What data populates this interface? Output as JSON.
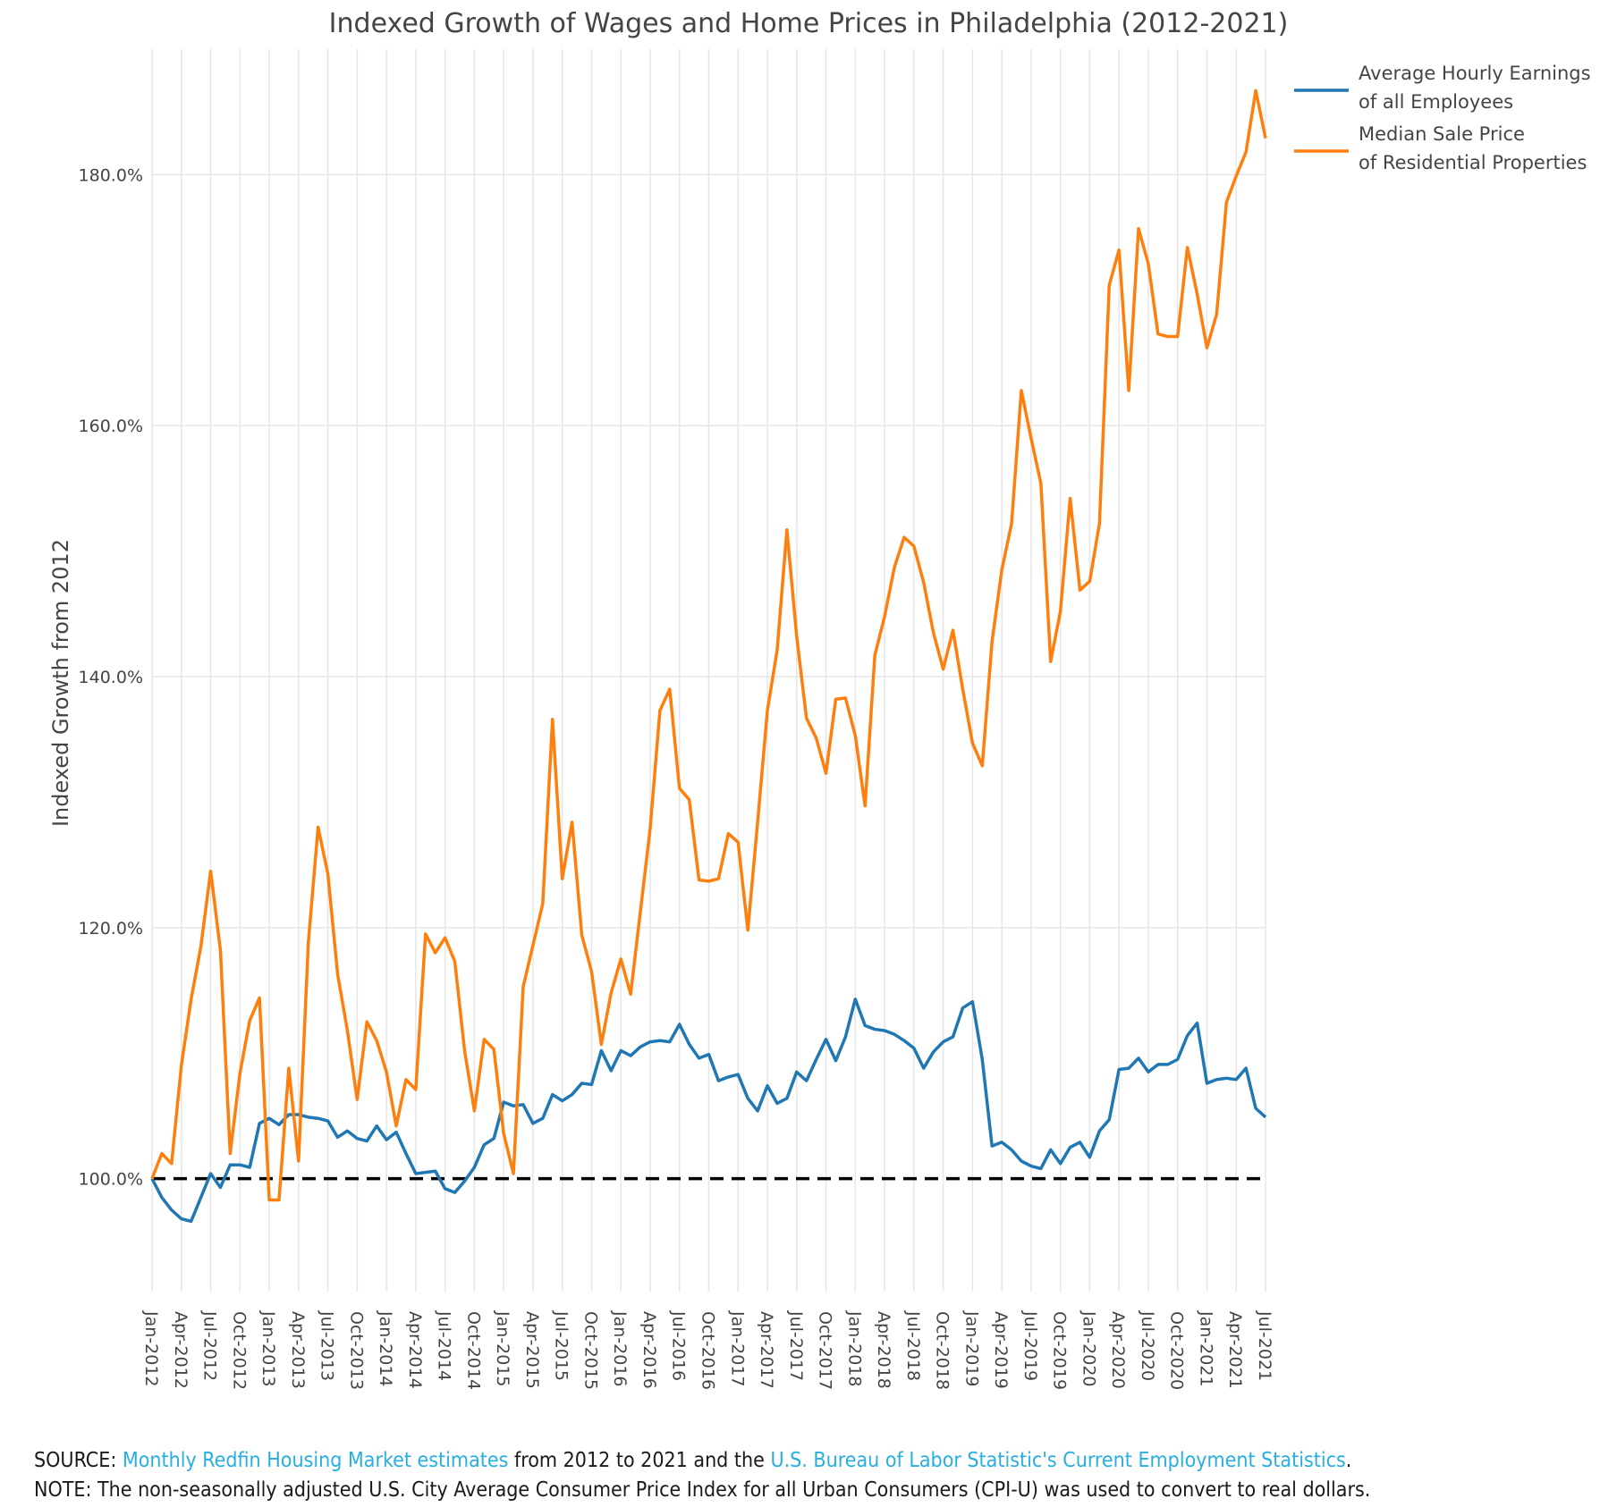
{
  "chart_data": {
    "type": "line",
    "title": "Indexed Growth of Wages and Home Prices in Philadelphia (2012-2021)",
    "ylabel": "Indexed Growth from 2012",
    "xlabel": "",
    "ylim": [
      91,
      190
    ],
    "yticks": [
      100,
      120,
      140,
      160,
      180
    ],
    "ytick_labels": [
      "100.0%",
      "120.0%",
      "140.0%",
      "160.0%",
      "180.0%"
    ],
    "x_start": "Jan-2012",
    "x_end": "Jul-2021",
    "xtick_labels": [
      "Jan-2012",
      "Apr-2012",
      "Jul-2012",
      "Oct-2012",
      "Jan-2013",
      "Apr-2013",
      "Jul-2013",
      "Oct-2013",
      "Jan-2014",
      "Apr-2014",
      "Jul-2014",
      "Oct-2014",
      "Jan-2015",
      "Apr-2015",
      "Jul-2015",
      "Oct-2015",
      "Jan-2016",
      "Apr-2016",
      "Jul-2016",
      "Oct-2016",
      "Jan-2017",
      "Apr-2017",
      "Jul-2017",
      "Oct-2017",
      "Jan-2018",
      "Apr-2018",
      "Jul-2018",
      "Oct-2018",
      "Jan-2019",
      "Apr-2019",
      "Jul-2019",
      "Oct-2019",
      "Jan-2020",
      "Apr-2020",
      "Jul-2020",
      "Oct-2020",
      "Jan-2021",
      "Apr-2021",
      "Jul-2021"
    ],
    "grid": true,
    "legend_position": "top-right",
    "reference_line": {
      "y": 100,
      "style": "dashed",
      "color": "#000000"
    },
    "series": [
      {
        "name": "Average Hourly Earnings of all Employees",
        "legend_lines": [
          "Average Hourly Earnings",
          "of all Employees"
        ],
        "color": "#1f77b4",
        "values": [
          100.0,
          98.5,
          97.5,
          96.8,
          96.6,
          98.5,
          100.4,
          99.3,
          101.1,
          101.1,
          100.9,
          104.4,
          104.8,
          104.3,
          105.1,
          105.1,
          104.9,
          104.8,
          104.6,
          103.3,
          103.8,
          103.2,
          103.0,
          104.2,
          103.1,
          103.7,
          102.0,
          100.4,
          100.5,
          100.6,
          99.2,
          98.9,
          99.8,
          100.9,
          102.7,
          103.2,
          106.1,
          105.8,
          105.9,
          104.4,
          104.8,
          106.7,
          106.2,
          106.7,
          107.6,
          107.5,
          110.2,
          108.6,
          110.2,
          109.8,
          110.5,
          110.9,
          111.0,
          110.9,
          112.3,
          110.7,
          109.6,
          109.9,
          107.8,
          108.1,
          108.3,
          106.4,
          105.4,
          107.4,
          106.0,
          106.4,
          108.5,
          107.8,
          109.5,
          111.1,
          109.4,
          111.3,
          114.3,
          112.2,
          111.9,
          111.8,
          111.5,
          111.0,
          110.4,
          108.8,
          110.1,
          110.9,
          111.3,
          113.6,
          114.1,
          109.5,
          102.6,
          102.9,
          102.3,
          101.4,
          101.0,
          100.8,
          102.3,
          101.2,
          102.5,
          102.9,
          101.7,
          103.8,
          104.7,
          108.7,
          108.8,
          109.6,
          108.5,
          109.1,
          109.1,
          109.5,
          111.4,
          112.4,
          107.6,
          107.9,
          108.0,
          107.9,
          108.8,
          105.6,
          104.9
        ]
      },
      {
        "name": "Median Sale Price of Residential Properties",
        "legend_lines": [
          "Median Sale Price",
          "of Residential Properties"
        ],
        "color": "#ff7f0e",
        "values": [
          100.0,
          102.0,
          101.2,
          109.0,
          114.3,
          118.5,
          124.5,
          118.2,
          102.0,
          108.4,
          112.6,
          114.4,
          98.3,
          98.3,
          108.8,
          101.4,
          118.8,
          128.0,
          124.3,
          116.3,
          111.8,
          106.3,
          112.5,
          111.0,
          108.5,
          104.2,
          107.9,
          107.1,
          119.5,
          118.0,
          119.2,
          117.3,
          110.2,
          105.4,
          111.1,
          110.3,
          103.6,
          100.4,
          115.3,
          118.6,
          121.9,
          136.6,
          123.9,
          128.4,
          119.4,
          116.5,
          110.7,
          114.8,
          117.5,
          114.7,
          121.3,
          127.9,
          137.3,
          139.0,
          131.1,
          130.2,
          123.8,
          123.7,
          123.9,
          127.5,
          126.8,
          119.8,
          128.4,
          137.3,
          142.1,
          151.7,
          143.2,
          136.7,
          135.1,
          132.3,
          138.2,
          138.3,
          135.3,
          129.7,
          141.7,
          144.8,
          148.7,
          151.1,
          150.4,
          147.5,
          143.5,
          140.6,
          143.7,
          139.0,
          134.7,
          132.9,
          142.8,
          148.5,
          152.2,
          162.8,
          159.0,
          155.4,
          141.2,
          145.2,
          154.2,
          146.9,
          147.6,
          152.2,
          171.2,
          174.0,
          162.8,
          175.7,
          172.9,
          167.3,
          167.1,
          167.1,
          174.2,
          170.5,
          166.2,
          168.9,
          177.8,
          179.9,
          181.8,
          186.7,
          182.9
        ]
      }
    ]
  },
  "footer": {
    "source_prefix": "SOURCE: ",
    "source_link1": "Monthly Redfin Housing Market estimates",
    "source_middle": " from 2012 to 2021 and the ",
    "source_link2": "U.S. Bureau of Labor Statistic's Current Employment Statistics",
    "source_suffix": ".",
    "note": "NOTE: The non-seasonally adjusted U.S. City Average Consumer Price Index for all Urban Consumers (CPI-U) was used to convert to real dollars."
  },
  "colors": {
    "link": "#29aee0",
    "grid": "#e6e6e6"
  }
}
